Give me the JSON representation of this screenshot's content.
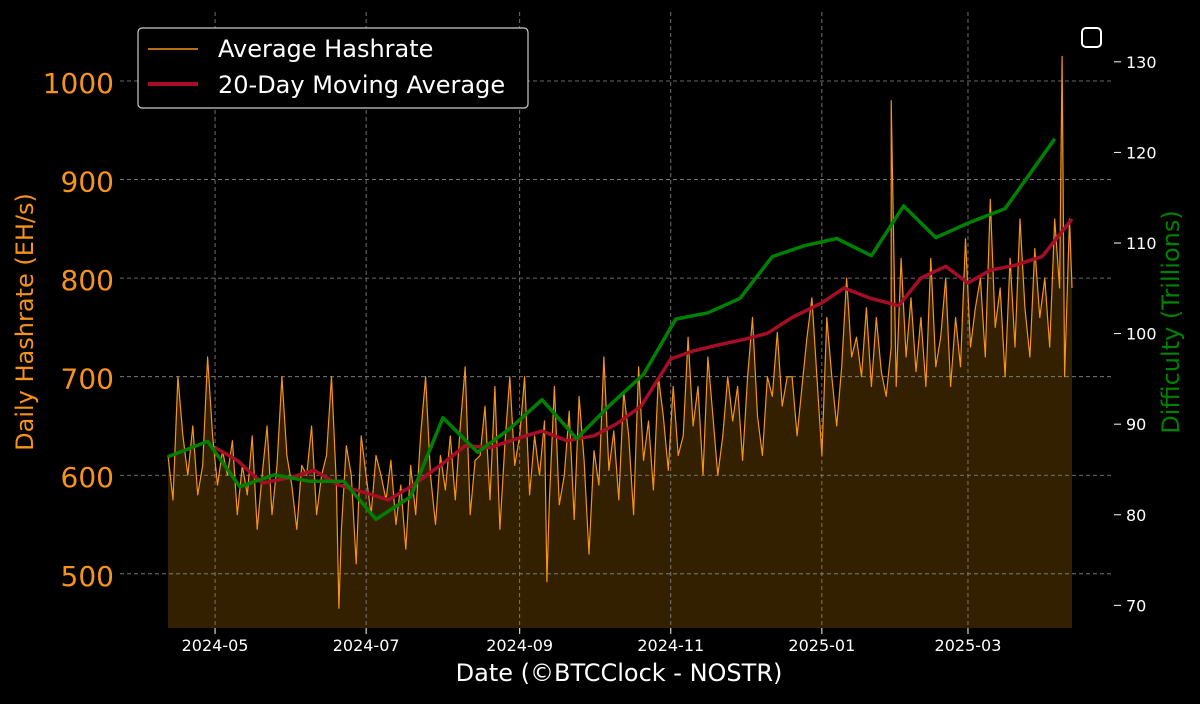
{
  "chart_data": {
    "type": "line",
    "title": "",
    "xlabel": "Date (©BTCClock - NOSTR)",
    "ylabel_left": "Daily Hashrate (EH/s)",
    "ylabel_right": "Difficulty (Trillions)",
    "x_range": [
      "2024-04-12",
      "2025-04-12"
    ],
    "ylim_left": [
      445,
      1070
    ],
    "ylim_right": [
      67.5,
      135.5
    ],
    "x_ticks": [
      "2024-05",
      "2024-07",
      "2024-09",
      "2024-11",
      "2025-01",
      "2025-03"
    ],
    "y_ticks_left": [
      500,
      600,
      700,
      800,
      900,
      1000
    ],
    "y_ticks_right": [
      70,
      80,
      90,
      100,
      110,
      120,
      130
    ],
    "grid": true,
    "legend_position": "top-left",
    "colors": {
      "hashrate": "#f7931a",
      "moving_average": "#a50e26",
      "difficulty": "#008000",
      "fill": "#332000",
      "grid": "#8a8a8a",
      "background": "#000000"
    },
    "series": [
      {
        "name": "Average Hashrate",
        "axis": "left",
        "sample_every_days": 2,
        "x_start": "2024-04-12",
        "values": [
          620,
          575,
          700,
          640,
          600,
          650,
          580,
          610,
          720,
          640,
          590,
          625,
          600,
          635,
          560,
          610,
          580,
          640,
          545,
          600,
          650,
          560,
          610,
          700,
          620,
          590,
          545,
          610,
          600,
          650,
          560,
          600,
          620,
          700,
          590,
          545,
          630,
          600,
          510,
          640,
          600,
          560,
          620,
          600,
          575,
          615,
          550,
          590,
          525,
          610,
          560,
          640,
          700,
          600,
          550,
          620,
          585,
          640,
          575,
          650,
          710,
          560,
          615,
          620,
          670,
          575,
          690,
          545,
          630,
          700,
          610,
          640,
          700,
          580,
          640,
          600,
          655,
          575,
          690,
          570,
          600,
          665,
          555,
          680,
          615,
          520,
          625,
          590,
          720,
          605,
          645,
          575,
          685,
          640,
          560,
          710,
          615,
          655,
          585,
          700,
          660,
          605,
          690,
          620,
          640,
          740,
          650,
          690,
          600,
          720,
          660,
          600,
          640,
          700,
          655,
          690,
          615,
          700,
          760,
          660,
          620,
          700,
          680,
          745,
          670,
          700,
          700,
          640,
          690,
          740,
          780,
          700,
          620,
          760,
          700,
          650,
          710,
          800,
          720,
          740,
          700,
          770,
          690,
          760,
          705,
          680,
          730,
          690,
          820,
          720,
          780,
          705,
          760,
          690,
          820,
          710,
          740,
          800,
          690,
          760,
          710,
          840,
          730,
          770,
          800,
          720,
          880,
          750,
          790,
          700,
          820,
          730,
          860,
          770,
          720,
          830,
          760,
          800,
          730,
          860,
          790,
          700,
          860,
          740,
          810,
          760,
          840,
          690,
          930,
          760,
          800,
          730,
          840,
          780,
          720,
          870,
          790,
          800,
          760,
          830,
          790,
          810,
          880,
          760,
          820,
          750,
          840,
          780,
          980,
          800,
          840,
          770,
          830,
          900,
          810,
          780,
          850,
          760,
          830,
          790,
          860,
          800,
          780,
          880,
          850,
          790,
          820,
          960,
          800
        ],
        "peaks": [
          {
            "date": "2024-06-20",
            "value": 465
          },
          {
            "date": "2024-09-12",
            "value": 492
          },
          {
            "date": "2025-01-29",
            "value": 980
          },
          {
            "date": "2025-04-08",
            "value": 1025
          }
        ],
        "last": {
          "date": "2025-04-12",
          "value": 790
        }
      },
      {
        "name": "20-Day Moving Average",
        "axis": "left",
        "points": [
          [
            "2024-05-01",
            628
          ],
          [
            "2024-05-10",
            615
          ],
          [
            "2024-05-20",
            592
          ],
          [
            "2024-06-01",
            598
          ],
          [
            "2024-06-10",
            605
          ],
          [
            "2024-06-20",
            590
          ],
          [
            "2024-07-01",
            582
          ],
          [
            "2024-07-10",
            575
          ],
          [
            "2024-07-20",
            590
          ],
          [
            "2024-08-01",
            612
          ],
          [
            "2024-08-10",
            630
          ],
          [
            "2024-08-20",
            628
          ],
          [
            "2024-09-01",
            638
          ],
          [
            "2024-09-10",
            645
          ],
          [
            "2024-09-20",
            635
          ],
          [
            "2024-10-01",
            640
          ],
          [
            "2024-10-10",
            652
          ],
          [
            "2024-10-20",
            670
          ],
          [
            "2024-11-01",
            718
          ],
          [
            "2024-11-10",
            726
          ],
          [
            "2024-11-20",
            732
          ],
          [
            "2024-12-01",
            738
          ],
          [
            "2024-12-10",
            744
          ],
          [
            "2024-12-20",
            760
          ],
          [
            "2025-01-01",
            775
          ],
          [
            "2025-01-10",
            790
          ],
          [
            "2025-01-20",
            780
          ],
          [
            "2025-02-01",
            772
          ],
          [
            "2025-02-10",
            800
          ],
          [
            "2025-02-20",
            812
          ],
          [
            "2025-03-01",
            795
          ],
          [
            "2025-03-10",
            808
          ],
          [
            "2025-03-20",
            813
          ],
          [
            "2025-03-31",
            822
          ],
          [
            "2025-04-12",
            860
          ]
        ]
      },
      {
        "name": "Difficulty",
        "axis": "right",
        "points": [
          [
            "2024-04-12",
            86.4
          ],
          [
            "2024-04-28",
            88.1
          ],
          [
            "2024-05-11",
            83.1
          ],
          [
            "2024-05-25",
            84.4
          ],
          [
            "2024-06-08",
            83.7
          ],
          [
            "2024-06-22",
            83.7
          ],
          [
            "2024-07-05",
            79.5
          ],
          [
            "2024-07-19",
            82.0
          ],
          [
            "2024-08-01",
            90.7
          ],
          [
            "2024-08-15",
            86.9
          ],
          [
            "2024-08-28",
            89.5
          ],
          [
            "2024-09-10",
            92.7
          ],
          [
            "2024-09-24",
            88.4
          ],
          [
            "2024-10-07",
            92.0
          ],
          [
            "2024-10-21",
            95.5
          ],
          [
            "2024-11-03",
            101.6
          ],
          [
            "2024-11-16",
            102.3
          ],
          [
            "2024-11-29",
            103.9
          ],
          [
            "2024-12-12",
            108.5
          ],
          [
            "2024-12-25",
            109.7
          ],
          [
            "2025-01-07",
            110.5
          ],
          [
            "2025-01-21",
            108.6
          ],
          [
            "2025-02-03",
            114.1
          ],
          [
            "2025-02-16",
            110.6
          ],
          [
            "2025-03-01",
            112.2
          ],
          [
            "2025-03-16",
            113.8
          ],
          [
            "2025-04-05",
            121.5
          ]
        ]
      }
    ],
    "legend": [
      {
        "label": "Average Hashrate"
      },
      {
        "label": "20-Day Moving Average"
      }
    ]
  }
}
